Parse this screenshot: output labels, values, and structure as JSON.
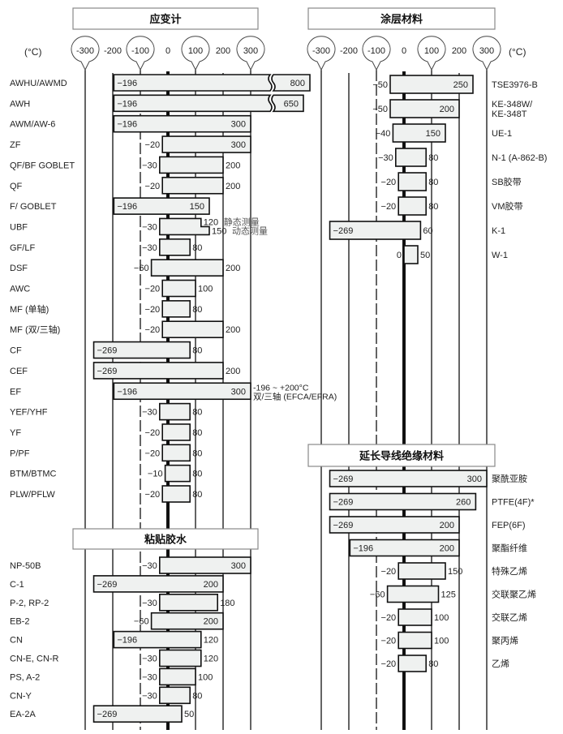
{
  "axis": {
    "unit": "(°C)",
    "ticks": [
      -300,
      -200,
      -100,
      0,
      100,
      200,
      300
    ],
    "bubbled_ticks": [
      -300,
      -100,
      100,
      300
    ]
  },
  "colors": {
    "bar_fill": "#eff1f0",
    "bar_stroke": "#111111",
    "header_stroke": "#888888"
  },
  "chart_data": {
    "type": "range-bar",
    "unit": "°C",
    "xlim": [
      -300,
      300
    ],
    "sections": [
      {
        "key": "strain",
        "title": "应变计",
        "rows": [
          {
            "label": "AWHU/AWMD",
            "min": -196,
            "max": 800,
            "broken": true
          },
          {
            "label": "AWH",
            "min": -196,
            "max": 650,
            "broken": true
          },
          {
            "label": "AWM/AW-6",
            "min": -196,
            "max": 300
          },
          {
            "label": "ZF",
            "min": -20,
            "max": 300
          },
          {
            "label": "QF/BF  GOBLET",
            "min": -30,
            "max": 200
          },
          {
            "label": "QF",
            "min": -20,
            "max": 200
          },
          {
            "label": "F/  GOBLET",
            "min": -196,
            "max": 150
          },
          {
            "label": "UBF",
            "min": -30,
            "max": 150,
            "max_static": 120,
            "note_static": "静态测量",
            "note_dynamic": "动态测量"
          },
          {
            "label": "GF/LF",
            "min": -30,
            "max": 80
          },
          {
            "label": "DSF",
            "min": -60,
            "max": 200
          },
          {
            "label": "AWC",
            "min": -20,
            "max": 100
          },
          {
            "label": "MF (单轴)",
            "min": -20,
            "max": 80
          },
          {
            "label": "MF (双/三轴)",
            "min": -20,
            "max": 200
          },
          {
            "label": "CF",
            "min": -269,
            "max": 80
          },
          {
            "label": "CEF",
            "min": -269,
            "max": 200
          },
          {
            "label": "EF",
            "min": -196,
            "max": 300,
            "note1": "-196 ~ +200°C",
            "note2": "双/三轴 (EFCA/EFRA)"
          },
          {
            "label": "YEF/YHF",
            "min": -30,
            "max": 80
          },
          {
            "label": "YF",
            "min": -20,
            "max": 80
          },
          {
            "label": "P/PF",
            "min": -20,
            "max": 80
          },
          {
            "label": "BTM/BTMC",
            "min": -10,
            "max": 80
          },
          {
            "label": "PLW/PFLW",
            "min": -20,
            "max": 80
          }
        ]
      },
      {
        "key": "adhesive",
        "title": "粘贴胶水",
        "rows": [
          {
            "label": "NP-50B",
            "min": -30,
            "max": 300
          },
          {
            "label": "C-1",
            "min": -269,
            "max": 200
          },
          {
            "label": "P-2, RP-2",
            "min": -30,
            "max": 180
          },
          {
            "label": "EB-2",
            "min": -60,
            "max": 200
          },
          {
            "label": "CN",
            "min": -196,
            "max": 120
          },
          {
            "label": "CN-E, CN-R",
            "min": -30,
            "max": 120
          },
          {
            "label": "PS, A-2",
            "min": -30,
            "max": 100
          },
          {
            "label": "CN-Y",
            "min": -30,
            "max": 80
          },
          {
            "label": "EA-2A",
            "min": -269,
            "max": 50
          }
        ]
      },
      {
        "key": "coating",
        "title": "涂层材料",
        "rows": [
          {
            "label": "TSE3976-B",
            "min": -50,
            "max": 250
          },
          {
            "label": "KE-348W/",
            "label2": "KE-348T",
            "min": -50,
            "max": 200
          },
          {
            "label": "UE-1",
            "min": -40,
            "max": 150
          },
          {
            "label": "N-1 (A-862-B)",
            "min": -30,
            "max": 80
          },
          {
            "label": "SB胶带",
            "min": -20,
            "max": 80
          },
          {
            "label": "VM胶带",
            "min": -20,
            "max": 80
          },
          {
            "label": "K-1",
            "min": -269,
            "max": 60
          },
          {
            "label": "W-1",
            "min": 0,
            "max": 50
          }
        ]
      },
      {
        "key": "leadwire",
        "title": "延长导线绝缘材料",
        "rows": [
          {
            "label": "聚酰亚胺",
            "min": -269,
            "max": 300
          },
          {
            "label": "PTFE(4F)*",
            "min": -269,
            "max": 260
          },
          {
            "label": "FEP(6F)",
            "min": -269,
            "max": 200
          },
          {
            "label": "聚酯纤维",
            "min": -196,
            "max": 200
          },
          {
            "label": "特殊乙烯",
            "min": -20,
            "max": 150
          },
          {
            "label": "交联聚乙烯",
            "min": -60,
            "max": 125
          },
          {
            "label": "交联乙烯",
            "min": -20,
            "max": 100
          },
          {
            "label": "聚丙烯",
            "min": -20,
            "max": 100
          },
          {
            "label": "乙烯",
            "min": -20,
            "max": 80
          }
        ]
      }
    ]
  }
}
